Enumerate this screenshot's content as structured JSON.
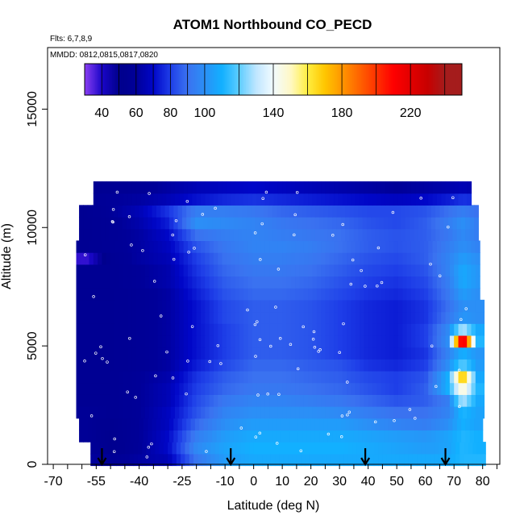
{
  "chart_data": {
    "type": "heatmap",
    "title": "ATOM1 Northbound CO_PECD",
    "subtitle_flights": "Flts: 6,7,8,9",
    "subtitle_dates": "MMDD: 0812,0815,0817,0820",
    "xlabel": "Latitude (deg N)",
    "ylabel": "Altitude (m)",
    "xlim": [
      -72,
      86
    ],
    "ylim": [
      0,
      17600
    ],
    "x_ticks": [
      -70,
      -55,
      -40,
      -25,
      -10,
      0,
      10,
      20,
      30,
      40,
      50,
      60,
      70,
      80
    ],
    "x_minor_ticks": [
      -65,
      -60,
      -50,
      -45,
      -35,
      -30,
      -20,
      -15,
      -5,
      5,
      15,
      25,
      35,
      45,
      55,
      65,
      75,
      85
    ],
    "y_ticks": [
      0,
      5000,
      10000,
      15000
    ],
    "colorbar": {
      "stops": [
        30,
        40,
        50,
        60,
        70,
        80,
        90,
        100,
        110,
        120,
        130,
        140,
        150,
        160,
        170,
        180,
        190,
        200,
        210,
        220,
        230,
        240,
        250
      ],
      "colors": [
        "#8b3ff2",
        "#1a06c8",
        "#00008c",
        "#000098",
        "#0006c8",
        "#1e3ee8",
        "#3a72f0",
        "#2b8ff6",
        "#12b0ff",
        "#5cccff",
        "#bfe6ff",
        "#f2fbff",
        "#fff8c6",
        "#ffee40",
        "#ffc600",
        "#ff9600",
        "#ff6400",
        "#ff3200",
        "#ff0000",
        "#e20000",
        "#c80000",
        "#a51c1c"
      ],
      "tick_labels": [
        40,
        60,
        80,
        100,
        140,
        180,
        220
      ],
      "divider_values": [
        40,
        50,
        60,
        70,
        80,
        90,
        100,
        120,
        140,
        160,
        180,
        200,
        220,
        240
      ]
    },
    "flight_markers_lat": [
      -53,
      -8,
      39,
      67
    ],
    "field_description": "CO (ppbv) curtain; low values 40-60 over southern hemisphere high latitudes, 90-120 tropics/northern hemisphere lower troposphere, hot spot ~200-240 near 73N at 5000 m",
    "field": {
      "row_altitudes": [
        200,
        700,
        1200,
        1700,
        2200,
        2700,
        3200,
        3700,
        4200,
        4700,
        5200,
        5700,
        6200,
        6700,
        7200,
        7700,
        8200,
        8700,
        9200,
        9700,
        10200,
        10700,
        11200,
        11700
      ],
      "control_lats": [
        -58,
        -50,
        -40,
        -30,
        -20,
        -10,
        0,
        10,
        20,
        30,
        40,
        50,
        60,
        68,
        73,
        78
      ],
      "rows": [
        [
          62,
          58,
          62,
          66,
          92,
          104,
          108,
          108,
          108,
          108,
          108,
          108,
          108,
          108,
          112,
          112
        ],
        [
          60,
          52,
          60,
          70,
          98,
          106,
          110,
          110,
          110,
          110,
          108,
          106,
          104,
          106,
          112,
          110
        ],
        [
          58,
          52,
          60,
          70,
          94,
          104,
          108,
          108,
          108,
          108,
          106,
          104,
          102,
          106,
          112,
          110
        ],
        [
          58,
          54,
          60,
          68,
          88,
          100,
          104,
          104,
          104,
          104,
          100,
          96,
          94,
          100,
          110,
          106
        ],
        [
          58,
          56,
          60,
          68,
          84,
          96,
          100,
          100,
          100,
          98,
          94,
          90,
          90,
          96,
          112,
          106
        ],
        [
          56,
          56,
          60,
          66,
          82,
          92,
          96,
          96,
          94,
          92,
          88,
          84,
          86,
          94,
          130,
          108
        ],
        [
          56,
          56,
          60,
          66,
          80,
          88,
          92,
          92,
          90,
          88,
          84,
          80,
          86,
          110,
          150,
          112
        ],
        [
          56,
          56,
          60,
          64,
          78,
          86,
          90,
          90,
          88,
          86,
          82,
          80,
          84,
          110,
          175,
          108
        ],
        [
          56,
          56,
          58,
          62,
          74,
          82,
          88,
          88,
          86,
          84,
          78,
          76,
          80,
          100,
          120,
          104
        ],
        [
          56,
          56,
          58,
          62,
          72,
          80,
          86,
          86,
          84,
          80,
          76,
          74,
          78,
          96,
          110,
          102
        ],
        [
          56,
          56,
          58,
          62,
          72,
          80,
          86,
          86,
          84,
          80,
          76,
          74,
          80,
          100,
          228,
          112
        ],
        [
          56,
          56,
          58,
          62,
          72,
          80,
          86,
          86,
          84,
          80,
          76,
          74,
          80,
          98,
          130,
          108
        ],
        [
          56,
          56,
          58,
          62,
          72,
          82,
          86,
          86,
          84,
          80,
          76,
          74,
          78,
          92,
          102,
          100
        ],
        [
          56,
          56,
          58,
          62,
          72,
          82,
          86,
          86,
          84,
          80,
          76,
          74,
          78,
          90,
          100,
          100
        ],
        [
          56,
          56,
          58,
          62,
          74,
          84,
          88,
          88,
          86,
          82,
          78,
          76,
          80,
          92,
          104,
          100
        ],
        [
          56,
          56,
          60,
          64,
          76,
          86,
          90,
          90,
          88,
          84,
          80,
          78,
          82,
          94,
          108,
          102
        ],
        [
          56,
          56,
          60,
          64,
          78,
          88,
          92,
          92,
          90,
          86,
          82,
          80,
          84,
          96,
          108,
          102
        ],
        [
          38,
          56,
          62,
          66,
          80,
          90,
          94,
          94,
          92,
          88,
          84,
          82,
          86,
          96,
          104,
          100
        ],
        [
          56,
          58,
          62,
          68,
          84,
          92,
          96,
          96,
          94,
          90,
          86,
          84,
          86,
          94,
          100,
          96
        ],
        [
          56,
          58,
          62,
          70,
          90,
          94,
          96,
          94,
          92,
          90,
          86,
          84,
          86,
          92,
          98,
          94
        ],
        [
          56,
          58,
          64,
          74,
          100,
          98,
          96,
          92,
          90,
          88,
          84,
          82,
          86,
          94,
          100,
          94
        ],
        [
          56,
          60,
          66,
          78,
          94,
          94,
          92,
          88,
          86,
          84,
          82,
          82,
          84,
          90,
          94,
          90
        ],
        [
          58,
          60,
          62,
          66,
          72,
          76,
          78,
          76,
          74,
          72,
          70,
          68,
          70,
          74,
          78,
          76
        ],
        [
          54,
          56,
          58,
          62,
          66,
          68,
          70,
          68,
          66,
          64,
          62,
          60,
          62,
          64,
          66,
          64
        ]
      ]
    }
  }
}
